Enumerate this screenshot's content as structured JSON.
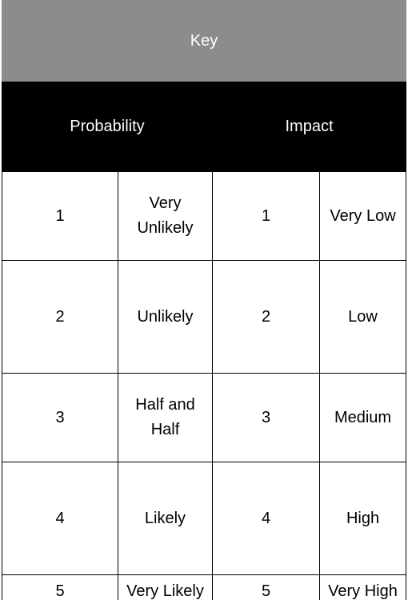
{
  "key_table": {
    "title": "Key",
    "headers": {
      "probability": "Probability",
      "impact": "Impact"
    },
    "rows": [
      {
        "probability_score": "1",
        "probability_label": "Very Unlikely",
        "impact_score": "1",
        "impact_label": "Very Low"
      },
      {
        "probability_score": "2",
        "probability_label": "Unlikely",
        "impact_score": "2",
        "impact_label": "Low"
      },
      {
        "probability_score": "3",
        "probability_label": "Half and Half",
        "impact_score": "3",
        "impact_label": "Medium"
      },
      {
        "probability_score": "4",
        "probability_label": "Likely",
        "impact_score": "4",
        "impact_label": "High"
      },
      {
        "probability_score": "5",
        "probability_label": "Very Likely",
        "impact_score": "5",
        "impact_label": "Very High"
      }
    ]
  },
  "colors": {
    "title_background": "#8c8c8c",
    "header_background": "#000000",
    "header_text": "#ffffff",
    "grid_lines": "#000000"
  }
}
